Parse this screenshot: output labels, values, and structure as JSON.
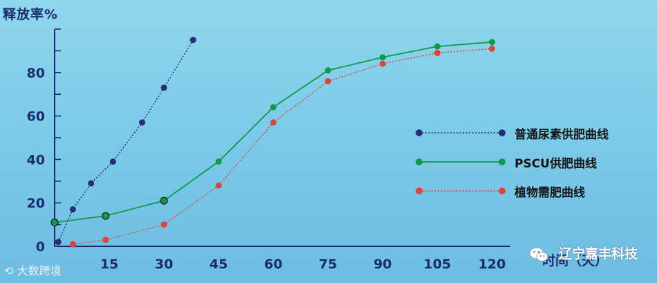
{
  "chart_data": {
    "type": "line",
    "ylabel": "释放率%",
    "xlabel": "时间（天）",
    "xlim": [
      0,
      125
    ],
    "ylim": [
      0,
      100
    ],
    "x_ticks": [
      15,
      30,
      45,
      60,
      75,
      90,
      105,
      120
    ],
    "y_ticks": [
      0,
      20,
      40,
      60,
      80
    ],
    "grid": false,
    "legend_position": "right",
    "series": [
      {
        "name": "普通尿素供肥曲线",
        "color": "#2d2a7c",
        "style": "dotted",
        "points": [
          [
            1,
            2
          ],
          [
            5,
            17
          ],
          [
            10,
            29
          ],
          [
            16,
            39
          ],
          [
            24,
            57
          ],
          [
            30,
            73
          ],
          [
            38,
            95
          ]
        ]
      },
      {
        "name": "PSCU供肥曲线",
        "color": "#0e9a48",
        "style": "solid",
        "points": [
          [
            0,
            11
          ],
          [
            14,
            14
          ],
          [
            30,
            21
          ],
          [
            45,
            39
          ],
          [
            60,
            64
          ],
          [
            75,
            81
          ],
          [
            90,
            87
          ],
          [
            105,
            92
          ],
          [
            120,
            94
          ]
        ]
      },
      {
        "name": "植物需肥曲线",
        "color": "#e04438",
        "style": "dotted",
        "points": [
          [
            5,
            1
          ],
          [
            14,
            3
          ],
          [
            30,
            10
          ],
          [
            45,
            28
          ],
          [
            60,
            57
          ],
          [
            75,
            76
          ],
          [
            90,
            84
          ],
          [
            105,
            89
          ],
          [
            120,
            91
          ]
        ]
      }
    ],
    "outlined_points": [
      [
        0,
        11
      ],
      [
        14,
        14
      ],
      [
        30,
        21
      ]
    ]
  },
  "watermarks": {
    "brand": "辽宁嘉丰科技",
    "source": "大数跨境"
  }
}
